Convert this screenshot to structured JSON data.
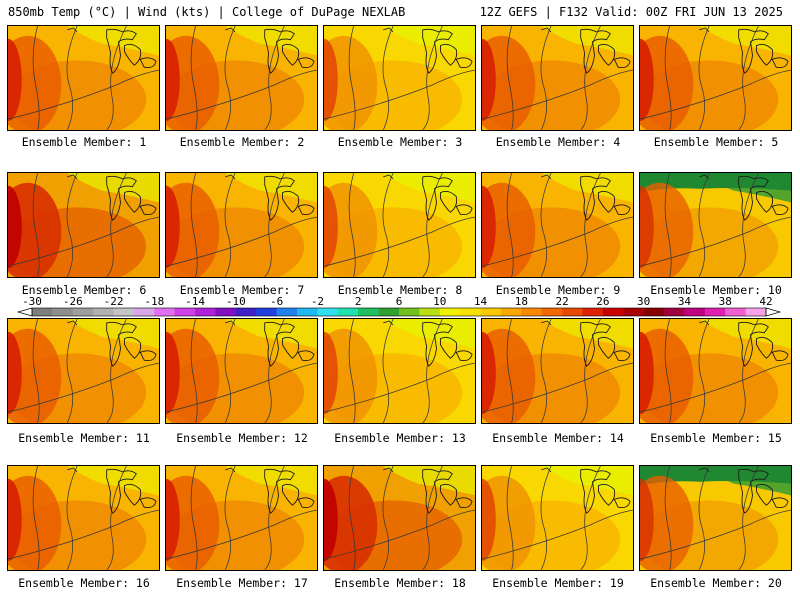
{
  "header": {
    "left": "850mb Temp (°C) | Wind (kts) | College of DuPage NEXLAB",
    "right": "12Z GEFS | F132 Valid: 00Z FRI JUN 13 2025"
  },
  "members": [
    {
      "label": "Ensemble Member: 1",
      "theme": "warm"
    },
    {
      "label": "Ensemble Member: 2",
      "theme": "warm"
    },
    {
      "label": "Ensemble Member: 3",
      "theme": "yellow"
    },
    {
      "label": "Ensemble Member: 4",
      "theme": "warm"
    },
    {
      "label": "Ensemble Member: 5",
      "theme": "warm"
    },
    {
      "label": "Ensemble Member: 6",
      "theme": "hot"
    },
    {
      "label": "Ensemble Member: 7",
      "theme": "warm"
    },
    {
      "label": "Ensemble Member: 8",
      "theme": "yellow"
    },
    {
      "label": "Ensemble Member: 9",
      "theme": "warm"
    },
    {
      "label": "Ensemble Member: 10",
      "theme": "cool"
    },
    {
      "label": "Ensemble Member: 11",
      "theme": "warm"
    },
    {
      "label": "Ensemble Member: 12",
      "theme": "warm"
    },
    {
      "label": "Ensemble Member: 13",
      "theme": "yellow"
    },
    {
      "label": "Ensemble Member: 14",
      "theme": "warm"
    },
    {
      "label": "Ensemble Member: 15",
      "theme": "warm"
    },
    {
      "label": "Ensemble Member: 16",
      "theme": "warm"
    },
    {
      "label": "Ensemble Member: 17",
      "theme": "warm"
    },
    {
      "label": "Ensemble Member: 18",
      "theme": "hot"
    },
    {
      "label": "Ensemble Member: 19",
      "theme": "yellow"
    },
    {
      "label": "Ensemble Member: 20",
      "theme": "cool"
    }
  ],
  "colorbar": {
    "tick_labels": [
      "-30",
      "-26",
      "-22",
      "-18",
      "-14",
      "-10",
      "-6",
      "-2",
      "2",
      "6",
      "10",
      "14",
      "18",
      "22",
      "26",
      "30",
      "34",
      "38",
      "42"
    ],
    "colors": [
      "#7e7e7e",
      "#8e8e8e",
      "#9e9e9e",
      "#b0b0b0",
      "#c4c4c4",
      "#d8a8e8",
      "#e070f0",
      "#d040e8",
      "#b020d8",
      "#8010c0",
      "#4020c8",
      "#2040e0",
      "#2080f0",
      "#20b8f0",
      "#30e0f0",
      "#20e0b0",
      "#20c060",
      "#30a030",
      "#70c020",
      "#b8e010",
      "#f0f000",
      "#f8e000",
      "#f8c800",
      "#f8a800",
      "#f88800",
      "#f06800",
      "#e84800",
      "#e02000",
      "#c80000",
      "#a80000",
      "#880000",
      "#a00040",
      "#c00080",
      "#e020b0",
      "#f060d0",
      "#f8a0e8"
    ]
  }
}
